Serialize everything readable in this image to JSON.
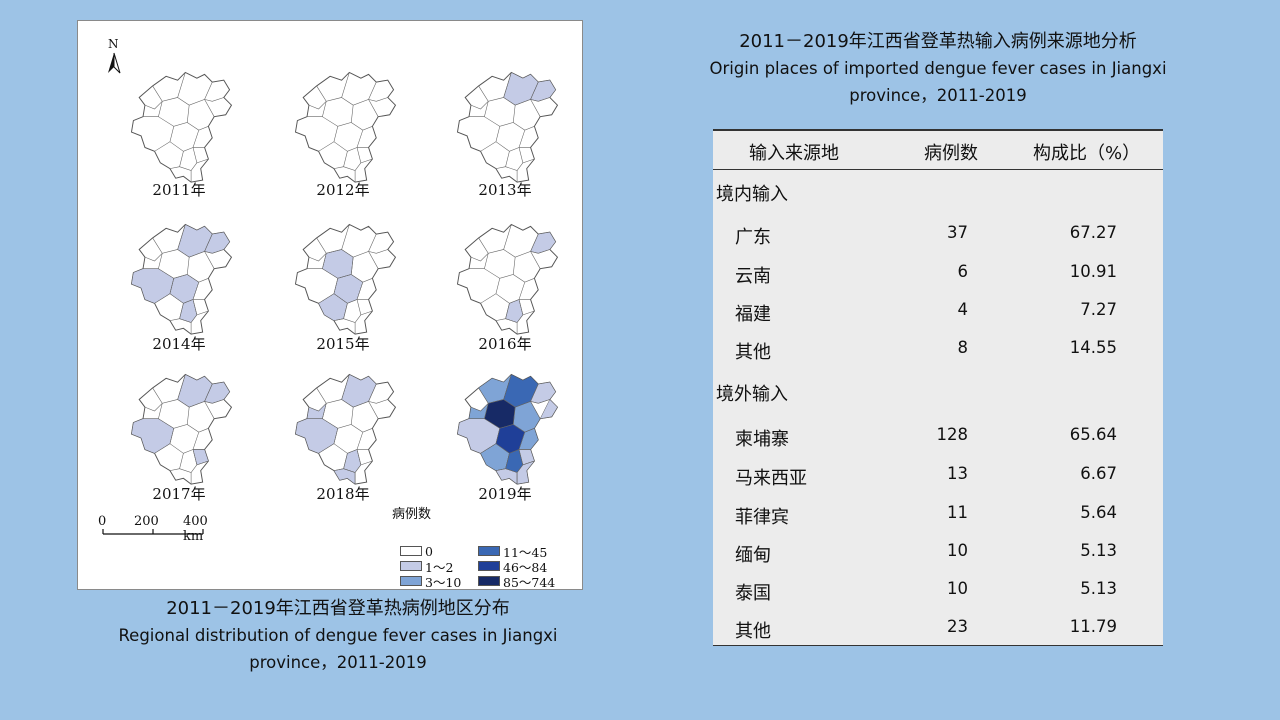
{
  "map_figure": {
    "north_label": "N",
    "years": [
      "2011年",
      "2012年",
      "2013年",
      "2014年",
      "2015年",
      "2016年",
      "2017年",
      "2018年",
      "2019年"
    ],
    "scale": {
      "zero": "0",
      "mid": "200",
      "end": "400 km"
    },
    "legend": {
      "title": "病例数",
      "items": [
        {
          "label": "0",
          "color": "#ffffff"
        },
        {
          "label": "1～2",
          "color": "#c4cbe6"
        },
        {
          "label": "3～10",
          "color": "#7fa4d6"
        },
        {
          "label": "11～45",
          "color": "#3a68b4"
        },
        {
          "label": "46～84",
          "color": "#1f3f98"
        },
        {
          "label": "85～744",
          "color": "#172a66"
        }
      ]
    }
  },
  "map_caption": {
    "cn": "2011－2019年江西省登革热病例地区分布",
    "en_line1": "Regional distribution of dengue fever cases in Jiangxi",
    "en_line2": "province，2011-2019"
  },
  "table_caption": {
    "cn": "2011－2019年江西省登革热输入病例来源地分析",
    "en_line1": "Origin places of imported dengue fever cases in Jiangxi",
    "en_line2": "province，2011-2019"
  },
  "table": {
    "headers": {
      "origin": "输入来源地",
      "cases": "病例数",
      "ratio": "构成比（%）"
    },
    "domestic": {
      "label": "境内输入",
      "rows": [
        {
          "name": "广东",
          "cases": "37",
          "ratio": "67.27"
        },
        {
          "name": "云南",
          "cases": "6",
          "ratio": "10.91"
        },
        {
          "name": "福建",
          "cases": "4",
          "ratio": "7.27"
        },
        {
          "name": "其他",
          "cases": "8",
          "ratio": "14.55"
        }
      ]
    },
    "foreign": {
      "label": "境外输入",
      "rows": [
        {
          "name": "柬埔寨",
          "cases": "128",
          "ratio": "65.64"
        },
        {
          "name": "马来西亚",
          "cases": "13",
          "ratio": "6.67"
        },
        {
          "name": "菲律宾",
          "cases": "11",
          "ratio": "5.64"
        },
        {
          "name": "缅甸",
          "cases": "10",
          "ratio": "5.13"
        },
        {
          "name": "泰国",
          "cases": "10",
          "ratio": "5.13"
        },
        {
          "name": "其他",
          "cases": "23",
          "ratio": "11.79"
        }
      ]
    }
  },
  "colors": {
    "background": "#9dc3e6",
    "table_bg": "#ececec"
  }
}
